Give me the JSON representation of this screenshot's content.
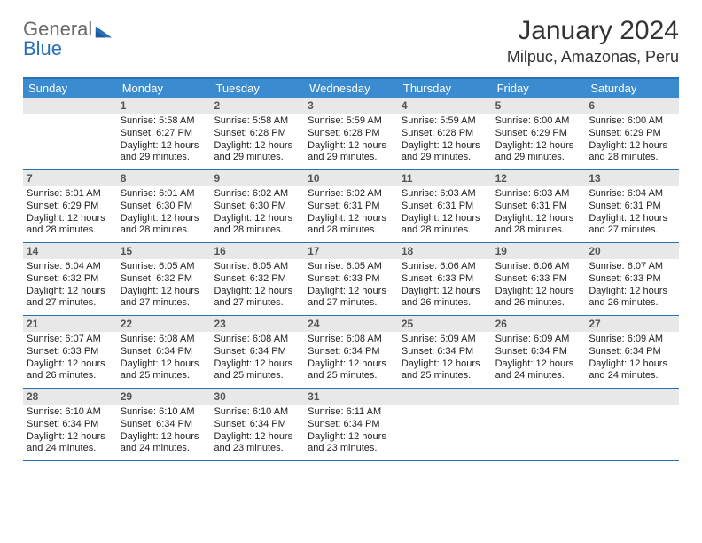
{
  "logo": {
    "line1": "General",
    "line2": "Blue"
  },
  "title": "January 2024",
  "location": "Milpuc, Amazonas, Peru",
  "colors": {
    "header_bar": "#3b8bd0",
    "border": "#2a6fb5",
    "dayband": "#e8e8e9",
    "text": "#333333"
  },
  "days_of_week": [
    "Sunday",
    "Monday",
    "Tuesday",
    "Wednesday",
    "Thursday",
    "Friday",
    "Saturday"
  ],
  "weeks": [
    [
      {
        "n": "",
        "sr": "",
        "ss": "",
        "dl": ""
      },
      {
        "n": "1",
        "sr": "Sunrise: 5:58 AM",
        "ss": "Sunset: 6:27 PM",
        "dl": "Daylight: 12 hours and 29 minutes."
      },
      {
        "n": "2",
        "sr": "Sunrise: 5:58 AM",
        "ss": "Sunset: 6:28 PM",
        "dl": "Daylight: 12 hours and 29 minutes."
      },
      {
        "n": "3",
        "sr": "Sunrise: 5:59 AM",
        "ss": "Sunset: 6:28 PM",
        "dl": "Daylight: 12 hours and 29 minutes."
      },
      {
        "n": "4",
        "sr": "Sunrise: 5:59 AM",
        "ss": "Sunset: 6:28 PM",
        "dl": "Daylight: 12 hours and 29 minutes."
      },
      {
        "n": "5",
        "sr": "Sunrise: 6:00 AM",
        "ss": "Sunset: 6:29 PM",
        "dl": "Daylight: 12 hours and 29 minutes."
      },
      {
        "n": "6",
        "sr": "Sunrise: 6:00 AM",
        "ss": "Sunset: 6:29 PM",
        "dl": "Daylight: 12 hours and 28 minutes."
      }
    ],
    [
      {
        "n": "7",
        "sr": "Sunrise: 6:01 AM",
        "ss": "Sunset: 6:29 PM",
        "dl": "Daylight: 12 hours and 28 minutes."
      },
      {
        "n": "8",
        "sr": "Sunrise: 6:01 AM",
        "ss": "Sunset: 6:30 PM",
        "dl": "Daylight: 12 hours and 28 minutes."
      },
      {
        "n": "9",
        "sr": "Sunrise: 6:02 AM",
        "ss": "Sunset: 6:30 PM",
        "dl": "Daylight: 12 hours and 28 minutes."
      },
      {
        "n": "10",
        "sr": "Sunrise: 6:02 AM",
        "ss": "Sunset: 6:31 PM",
        "dl": "Daylight: 12 hours and 28 minutes."
      },
      {
        "n": "11",
        "sr": "Sunrise: 6:03 AM",
        "ss": "Sunset: 6:31 PM",
        "dl": "Daylight: 12 hours and 28 minutes."
      },
      {
        "n": "12",
        "sr": "Sunrise: 6:03 AM",
        "ss": "Sunset: 6:31 PM",
        "dl": "Daylight: 12 hours and 28 minutes."
      },
      {
        "n": "13",
        "sr": "Sunrise: 6:04 AM",
        "ss": "Sunset: 6:31 PM",
        "dl": "Daylight: 12 hours and 27 minutes."
      }
    ],
    [
      {
        "n": "14",
        "sr": "Sunrise: 6:04 AM",
        "ss": "Sunset: 6:32 PM",
        "dl": "Daylight: 12 hours and 27 minutes."
      },
      {
        "n": "15",
        "sr": "Sunrise: 6:05 AM",
        "ss": "Sunset: 6:32 PM",
        "dl": "Daylight: 12 hours and 27 minutes."
      },
      {
        "n": "16",
        "sr": "Sunrise: 6:05 AM",
        "ss": "Sunset: 6:32 PM",
        "dl": "Daylight: 12 hours and 27 minutes."
      },
      {
        "n": "17",
        "sr": "Sunrise: 6:05 AM",
        "ss": "Sunset: 6:33 PM",
        "dl": "Daylight: 12 hours and 27 minutes."
      },
      {
        "n": "18",
        "sr": "Sunrise: 6:06 AM",
        "ss": "Sunset: 6:33 PM",
        "dl": "Daylight: 12 hours and 26 minutes."
      },
      {
        "n": "19",
        "sr": "Sunrise: 6:06 AM",
        "ss": "Sunset: 6:33 PM",
        "dl": "Daylight: 12 hours and 26 minutes."
      },
      {
        "n": "20",
        "sr": "Sunrise: 6:07 AM",
        "ss": "Sunset: 6:33 PM",
        "dl": "Daylight: 12 hours and 26 minutes."
      }
    ],
    [
      {
        "n": "21",
        "sr": "Sunrise: 6:07 AM",
        "ss": "Sunset: 6:33 PM",
        "dl": "Daylight: 12 hours and 26 minutes."
      },
      {
        "n": "22",
        "sr": "Sunrise: 6:08 AM",
        "ss": "Sunset: 6:34 PM",
        "dl": "Daylight: 12 hours and 25 minutes."
      },
      {
        "n": "23",
        "sr": "Sunrise: 6:08 AM",
        "ss": "Sunset: 6:34 PM",
        "dl": "Daylight: 12 hours and 25 minutes."
      },
      {
        "n": "24",
        "sr": "Sunrise: 6:08 AM",
        "ss": "Sunset: 6:34 PM",
        "dl": "Daylight: 12 hours and 25 minutes."
      },
      {
        "n": "25",
        "sr": "Sunrise: 6:09 AM",
        "ss": "Sunset: 6:34 PM",
        "dl": "Daylight: 12 hours and 25 minutes."
      },
      {
        "n": "26",
        "sr": "Sunrise: 6:09 AM",
        "ss": "Sunset: 6:34 PM",
        "dl": "Daylight: 12 hours and 24 minutes."
      },
      {
        "n": "27",
        "sr": "Sunrise: 6:09 AM",
        "ss": "Sunset: 6:34 PM",
        "dl": "Daylight: 12 hours and 24 minutes."
      }
    ],
    [
      {
        "n": "28",
        "sr": "Sunrise: 6:10 AM",
        "ss": "Sunset: 6:34 PM",
        "dl": "Daylight: 12 hours and 24 minutes."
      },
      {
        "n": "29",
        "sr": "Sunrise: 6:10 AM",
        "ss": "Sunset: 6:34 PM",
        "dl": "Daylight: 12 hours and 24 minutes."
      },
      {
        "n": "30",
        "sr": "Sunrise: 6:10 AM",
        "ss": "Sunset: 6:34 PM",
        "dl": "Daylight: 12 hours and 23 minutes."
      },
      {
        "n": "31",
        "sr": "Sunrise: 6:11 AM",
        "ss": "Sunset: 6:34 PM",
        "dl": "Daylight: 12 hours and 23 minutes."
      },
      {
        "n": "",
        "sr": "",
        "ss": "",
        "dl": ""
      },
      {
        "n": "",
        "sr": "",
        "ss": "",
        "dl": ""
      },
      {
        "n": "",
        "sr": "",
        "ss": "",
        "dl": ""
      }
    ]
  ]
}
